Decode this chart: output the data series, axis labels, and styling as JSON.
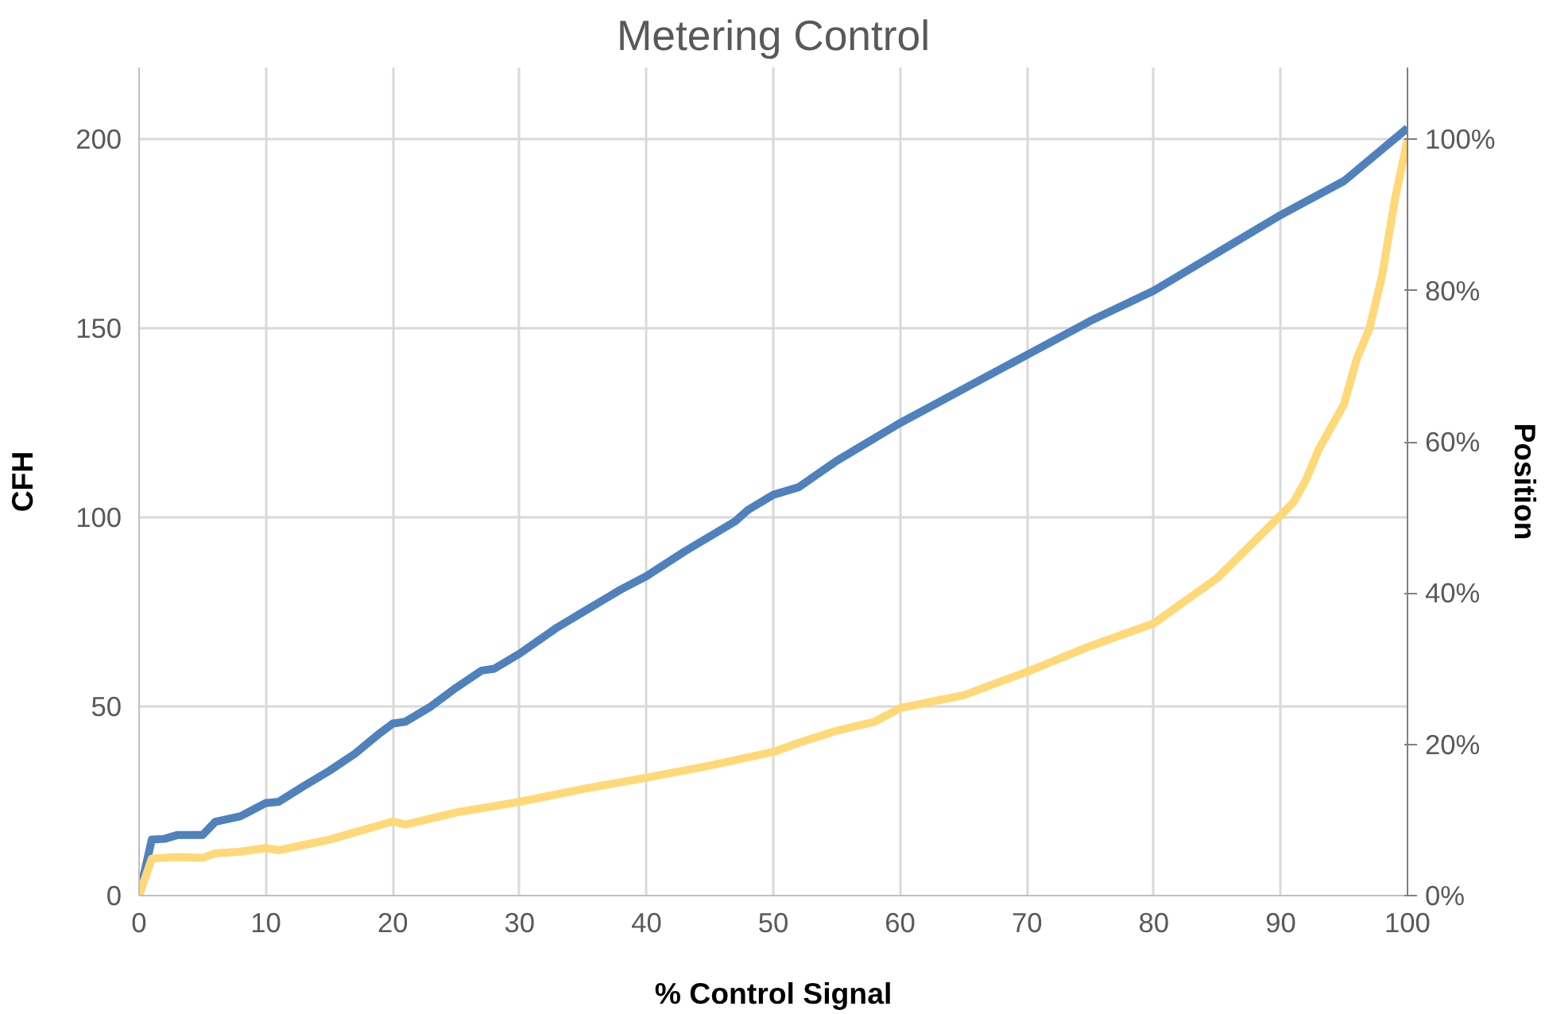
{
  "chart_data": {
    "type": "line",
    "title": "Metering Control",
    "xlabel": "% Control Signal",
    "ylabel": "CFH",
    "y2label": "Position",
    "xlim": [
      0,
      100
    ],
    "xticks": [
      0,
      10,
      20,
      30,
      40,
      50,
      60,
      70,
      80,
      90,
      100
    ],
    "ylim": [
      0,
      219
    ],
    "yticks": [
      0,
      50,
      100,
      150,
      200
    ],
    "y2lim": [
      0,
      109.5
    ],
    "y2ticks": [
      {
        "value": 0,
        "label": "0%"
      },
      {
        "value": 20,
        "label": "20%"
      },
      {
        "value": 40,
        "label": "40%"
      },
      {
        "value": 60,
        "label": "60%"
      },
      {
        "value": 80,
        "label": "80%"
      },
      {
        "value": 100,
        "label": "100%"
      }
    ],
    "grid": true,
    "marker": "none",
    "line_style": "solid",
    "series": [
      {
        "color": "#4f81bd",
        "x": [
          0,
          1,
          2,
          3,
          5,
          6,
          8,
          10,
          11,
          13,
          15,
          17,
          19,
          20,
          21,
          23,
          25,
          27,
          28,
          30,
          33,
          35,
          38,
          40,
          43,
          45,
          47,
          48,
          50,
          52,
          55,
          60,
          65,
          70,
          75,
          80,
          85,
          90,
          95,
          100
        ],
        "values": [
          0,
          14.8,
          15,
          16,
          16,
          19.5,
          21,
          24.5,
          24.8,
          29,
          33,
          37.5,
          43,
          45.5,
          46,
          50,
          55,
          59.5,
          60,
          64,
          71,
          75,
          81,
          84.5,
          91,
          95,
          99,
          102,
          106,
          108,
          115,
          125,
          134,
          143,
          152,
          160,
          170,
          180,
          189,
          203
        ]
      },
      {
        "color": "#ffd878",
        "axis": "y2",
        "x": [
          0,
          1,
          3,
          5,
          6,
          8,
          10,
          11,
          13,
          15,
          20,
          21,
          25,
          30,
          35,
          40,
          45,
          50,
          52,
          55,
          58,
          60,
          65,
          70,
          75,
          80,
          85,
          90,
          91,
          92,
          93,
          94,
          95,
          96,
          97,
          98,
          99,
          100
        ],
        "values": [
          0,
          4.9,
          5.1,
          5.0,
          5.6,
          5.8,
          6.3,
          6.0,
          6.7,
          7.4,
          9.8,
          9.4,
          11,
          12.4,
          14.1,
          15.6,
          17.2,
          19,
          20.2,
          21.8,
          23,
          24.8,
          26.5,
          29.6,
          33,
          36,
          42,
          50.3,
          52,
          55,
          59,
          62,
          65,
          71,
          75,
          82,
          92,
          100
        ]
      }
    ]
  }
}
